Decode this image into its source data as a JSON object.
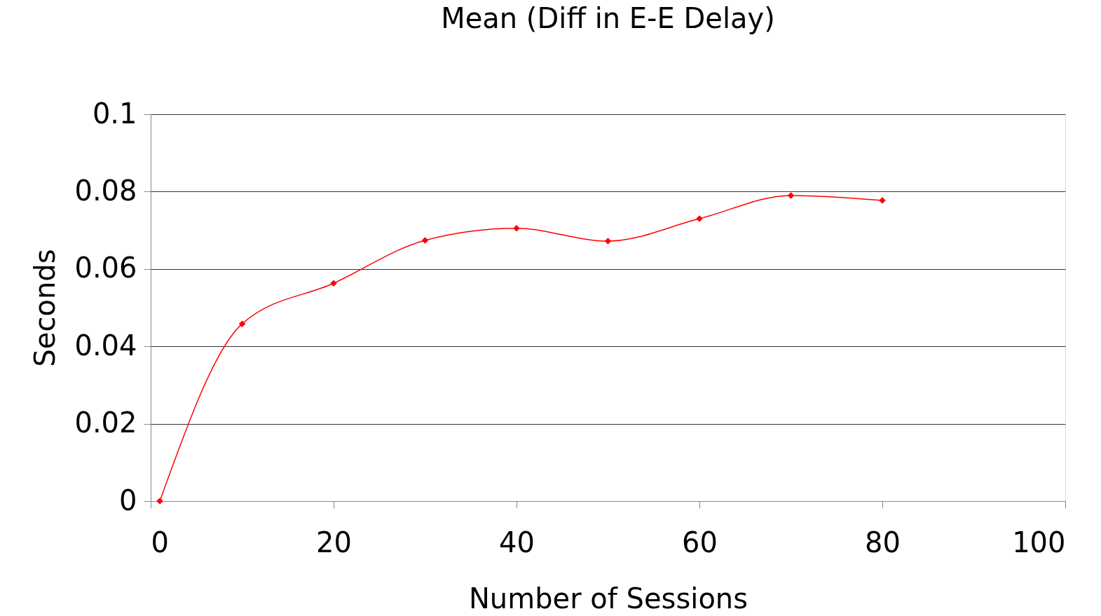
{
  "chart_data": {
    "type": "line",
    "title": "Mean (Diff in E-E Delay)",
    "xlabel": "Number of Sessions",
    "ylabel": "Seconds",
    "x": [
      1,
      10,
      20,
      30,
      40,
      50,
      60,
      70,
      80
    ],
    "series": [
      {
        "color": "#ff0000",
        "values": [
          0,
          0.0458,
          0.0563,
          0.0674,
          0.0705,
          0.0672,
          0.073,
          0.079,
          0.0777
        ]
      }
    ],
    "xlim": [
      0,
      100
    ],
    "xticks": [
      0,
      20,
      40,
      60,
      80,
      100
    ],
    "ylim": [
      0,
      0.1
    ],
    "yticks": [
      0,
      0.02,
      0.04,
      0.06,
      0.08,
      0.1
    ],
    "grid": "y",
    "marker": "diamond",
    "line_style": "solid"
  }
}
